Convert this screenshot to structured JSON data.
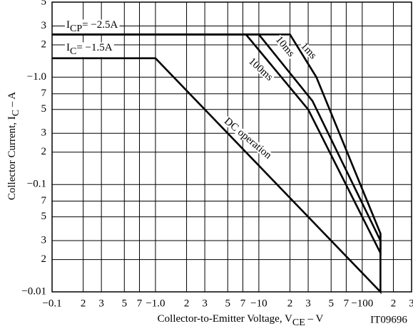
{
  "chart_data": {
    "type": "line",
    "log_x": true,
    "log_y": true,
    "grid": true,
    "xlim": [
      0.1,
      300
    ],
    "ylim": [
      0.01,
      5
    ],
    "xticks": [
      {
        "value": 0.1,
        "label": "−0.1"
      },
      {
        "value": 0.2,
        "label": "2"
      },
      {
        "value": 0.3,
        "label": "3"
      },
      {
        "value": 0.5,
        "label": "5"
      },
      {
        "value": 0.7,
        "label": "7"
      },
      {
        "value": 1,
        "label": "−1.0"
      },
      2,
      3,
      5,
      7,
      {
        "value": 10,
        "label": "−10"
      },
      {
        "value": 20,
        "label": "2"
      },
      {
        "value": 30,
        "label": "3"
      },
      {
        "value": 50,
        "label": "5"
      },
      {
        "value": 70,
        "label": "7"
      },
      {
        "value": 100,
        "label": "−100"
      },
      {
        "value": 200,
        "label": "2"
      },
      {
        "value": 300,
        "label": "3"
      }
    ],
    "yticks": [
      {
        "value": 0.01,
        "label": "−0.01"
      },
      {
        "value": 0.02,
        "label": "2"
      },
      {
        "value": 0.03,
        "label": "3"
      },
      {
        "value": 0.05,
        "label": "5"
      },
      {
        "value": 0.07,
        "label": "7"
      },
      {
        "value": 0.1,
        "label": "−0.1"
      },
      {
        "value": 0.2,
        "label": "2"
      },
      {
        "value": 0.3,
        "label": "3"
      },
      {
        "value": 0.5,
        "label": "5"
      },
      {
        "value": 0.7,
        "label": "7"
      },
      {
        "value": 1,
        "label": "−1.0"
      },
      2,
      3,
      5
    ],
    "x_label": [
      "Collector-to-Emitter Voltage, V",
      "CE",
      " – V"
    ],
    "y_label": [
      "Collector Current, I",
      "C",
      " – A"
    ],
    "code": "IT09696",
    "annotations": [
      {
        "parts": [
          "I",
          "CP",
          "= −2.5A"
        ]
      },
      {
        "parts": [
          "I",
          "C",
          "= −1.5A"
        ]
      }
    ],
    "series": [
      {
        "name": "1ms",
        "color": "#000000",
        "x": [
          0.1,
          20,
          36,
          150,
          150
        ],
        "values": [
          2.5,
          2.5,
          1.0,
          0.035,
          0.025
        ]
      },
      {
        "name": "10ms",
        "color": "#000000",
        "x": [
          0.1,
          10,
          33,
          150,
          150
        ],
        "values": [
          2.5,
          2.5,
          0.6,
          0.03,
          0.022
        ]
      },
      {
        "name": "100ms",
        "color": "#000000",
        "x": [
          0.1,
          7.5,
          30,
          150
        ],
        "values": [
          2.5,
          2.5,
          0.5,
          0.023
        ]
      },
      {
        "name": "DC operation",
        "color": "#000000",
        "x": [
          0.1,
          1,
          150,
          150
        ],
        "values": [
          1.5,
          1.5,
          0.01,
          0.035
        ]
      }
    ]
  }
}
